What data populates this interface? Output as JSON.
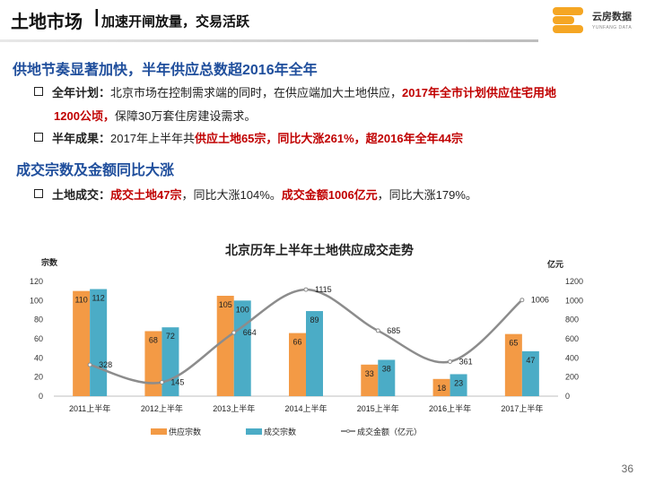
{
  "header": {
    "title": "土地市场",
    "separator": "|",
    "subtitle": "加速开闸放量，交易活跃",
    "logo_cn": "云房数据",
    "logo_en": "YUNFANG DATA"
  },
  "sections": [
    {
      "heading": "供地节奏显著加快，半年供应总数超2016年全年",
      "bullets": [
        {
          "label": "全年计划",
          "colon": "：",
          "text1": "北京市场在控制需求端的同时，在供应端加大土地供应，",
          "highlight1": "2017年全市计划供应住宅用地",
          "line2_highlight": "1200公顷，",
          "line2_text": "保障30万套住房建设需求。"
        },
        {
          "label": "半年成果",
          "colon": "：",
          "text1": "2017年上半年共",
          "highlight1": "供应土地65宗，同比大涨261%，超2016年全年44宗"
        }
      ]
    },
    {
      "heading": "成交宗数及金额同比大涨",
      "bullets": [
        {
          "label": "土地成交",
          "colon": "：",
          "highlight1": "成交土地47宗",
          "text1": "，同比大涨104%。",
          "highlight2": "成交金额1006亿元",
          "text2": "，同比大涨179%。"
        }
      ]
    }
  ],
  "page_number": "36",
  "chart_data": {
    "type": "bar",
    "title": "北京历年上半年土地供应成交走势",
    "categories": [
      "2011上半年",
      "2012上半年",
      "2013上半年",
      "2014上半年",
      "2015上半年",
      "2016上半年",
      "2017上半年"
    ],
    "series": [
      {
        "name": "供应宗数",
        "type": "bar",
        "axis": "left",
        "color": "#f39a45",
        "values": [
          110,
          68,
          105,
          66,
          33,
          18,
          65
        ]
      },
      {
        "name": "成交宗数",
        "type": "bar",
        "axis": "left",
        "color": "#4bacc6",
        "values": [
          112,
          72,
          100,
          89,
          38,
          23,
          47
        ]
      },
      {
        "name": "成交金额（亿元）",
        "type": "line",
        "axis": "right",
        "color": "#8c8c8c",
        "values": [
          328,
          145,
          664,
          1115,
          685,
          361,
          1006
        ]
      }
    ],
    "ylabel_left": "宗数",
    "ylabel_right": "亿元",
    "ylim_left": [
      0,
      120
    ],
    "yticks_left": [
      0,
      20,
      40,
      60,
      80,
      100,
      120
    ],
    "ylim_right": [
      0,
      1200
    ],
    "yticks_right": [
      0,
      200,
      400,
      600,
      800,
      1000,
      1200
    ],
    "legend": "bottom",
    "grid": false
  }
}
